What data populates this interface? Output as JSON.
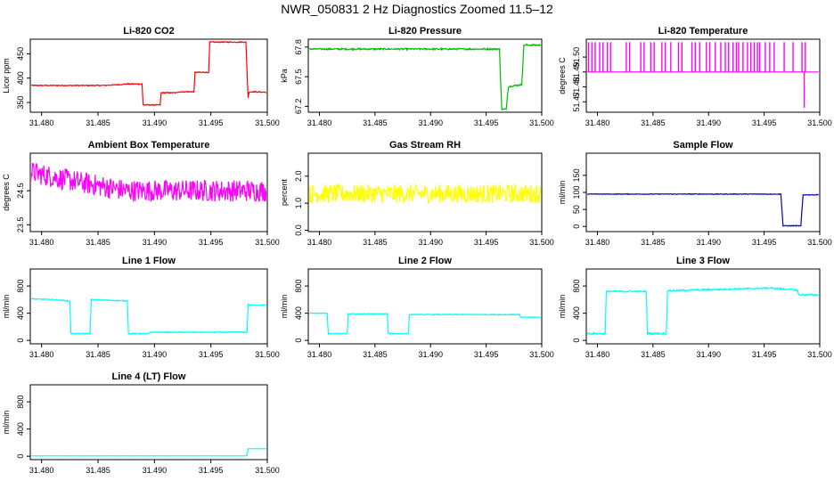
{
  "page_title": "NWR_050831  2 Hz Diagnostics Zoomed 11.5–12",
  "chart_data": [
    {
      "type": "line",
      "title": "Li‑820 CO2",
      "ylabel": "Licor ppm",
      "color": "#ff0000",
      "xlim": [
        31.479,
        31.5
      ],
      "ylim": [
        330,
        480
      ],
      "x_ticks": [
        31.48,
        31.485,
        31.49,
        31.495,
        31.5
      ],
      "x_tick_labels": [
        "31.480",
        "31.485",
        "31.490",
        "31.495",
        "31.500"
      ],
      "y_ticks": [
        350,
        400,
        450
      ],
      "y_tick_labels": [
        "350",
        "400",
        "450"
      ],
      "noise": 1,
      "series": [
        {
          "x": [
            31.479,
            31.4855,
            31.487,
            31.4875,
            31.4889,
            31.489,
            31.4905,
            31.4906,
            31.492,
            31.4921,
            31.4935,
            31.4936,
            31.4948,
            31.4949,
            31.4981,
            31.4983,
            31.4984,
            31.4988,
            31.4999
          ],
          "y": [
            385,
            385,
            387,
            388,
            388,
            345,
            345,
            370,
            370,
            372,
            372,
            412,
            412,
            474,
            474,
            360,
            372,
            372,
            371
          ]
        }
      ]
    },
    {
      "type": "line",
      "title": "Li‑820 Pressure",
      "ylabel": "kPa",
      "color": "#00bb00",
      "xlim": [
        31.479,
        31.5
      ],
      "ylim": [
        67.14,
        67.88
      ],
      "x_ticks": [
        31.48,
        31.485,
        31.49,
        31.495,
        31.5
      ],
      "x_tick_labels": [
        "31.480",
        "31.485",
        "31.490",
        "31.495",
        "31.500"
      ],
      "y_ticks": [
        67.2,
        67.5,
        67.8
      ],
      "y_tick_labels": [
        "67.2",
        "67.5",
        "67.8"
      ],
      "noise": 0.008,
      "series": [
        {
          "x": [
            31.479,
            31.4962,
            31.4964,
            31.4968,
            31.497,
            31.4982,
            31.4984,
            31.4986,
            31.4999
          ],
          "y": [
            67.78,
            67.78,
            67.17,
            67.17,
            67.4,
            67.42,
            67.82,
            67.82,
            67.82
          ]
        }
      ]
    },
    {
      "type": "line",
      "title": "Li‑820 Temperature",
      "ylabel": "degrees C",
      "color": "#ff00ff",
      "xlim": [
        31.479,
        31.5
      ],
      "ylim": [
        51.463,
        51.512
      ],
      "x_ticks": [
        31.48,
        31.485,
        31.49,
        31.495,
        31.5
      ],
      "x_tick_labels": [
        "31.480",
        "31.485",
        "31.490",
        "31.495",
        "31.500"
      ],
      "y_ticks": [
        51.47,
        51.48,
        51.49,
        51.5
      ],
      "y_tick_labels": [
        "51.47",
        "51.48",
        "51.49",
        "51.50"
      ],
      "baseline": 51.49,
      "spike_top": 51.51,
      "spike_x": [
        31.4792,
        31.4795,
        31.4798,
        31.4802,
        31.4805,
        31.4809,
        31.4812,
        31.4826,
        31.4829,
        31.4839,
        31.4842,
        31.4848,
        31.4851,
        31.4858,
        31.4861,
        31.4866,
        31.4873,
        31.4876,
        31.4885,
        31.4888,
        31.4892,
        31.4898,
        31.4901,
        31.4906,
        31.4911,
        31.4915,
        31.4918,
        31.4922,
        31.4925,
        31.4927,
        31.4931,
        31.4935,
        31.4938,
        31.4941,
        31.4944,
        31.4946,
        31.4951,
        31.4955,
        31.4959,
        31.4968,
        31.4976,
        31.4984,
        31.4987
      ],
      "dip_x": 31.4986,
      "dip_y": 51.466,
      "series": []
    },
    {
      "type": "line",
      "title": "Ambient Box Temperature",
      "ylabel": "degrees C",
      "color": "#ff00ff",
      "xlim": [
        31.479,
        31.5
      ],
      "ylim": [
        23.3,
        25.6
      ],
      "x_ticks": [
        31.48,
        31.485,
        31.49,
        31.495,
        31.5
      ],
      "x_tick_labels": [
        "31.480",
        "31.485",
        "31.490",
        "31.495",
        "31.500"
      ],
      "y_ticks": [
        23.5,
        24.5
      ],
      "y_tick_labels": [
        "23.5",
        "24.5"
      ],
      "noise": 0.32,
      "series": [
        {
          "x": [
            31.479,
            31.4825,
            31.4875,
            31.4999
          ],
          "y": [
            25.05,
            24.8,
            24.5,
            24.5
          ]
        }
      ]
    },
    {
      "type": "line",
      "title": "Gas Stream RH",
      "ylabel": "percent",
      "color": "#ffff00",
      "xlim": [
        31.479,
        31.5
      ],
      "ylim": [
        -0.05,
        2.85
      ],
      "x_ticks": [
        31.48,
        31.485,
        31.49,
        31.495,
        31.5
      ],
      "x_tick_labels": [
        "31.480",
        "31.485",
        "31.490",
        "31.495",
        "31.500"
      ],
      "y_ticks": [
        0.0,
        1.0,
        2.0
      ],
      "y_tick_labels": [
        "0.0",
        "1.0",
        "2.0"
      ],
      "noise": 0.35,
      "series": [
        {
          "x": [
            31.479,
            31.4999
          ],
          "y": [
            1.35,
            1.35
          ]
        }
      ]
    },
    {
      "type": "line",
      "title": "Sample Flow",
      "ylabel": "ml/min",
      "color": "#0000bb",
      "xlim": [
        31.479,
        31.5
      ],
      "ylim": [
        -15,
        215
      ],
      "x_ticks": [
        31.48,
        31.485,
        31.49,
        31.495,
        31.5
      ],
      "x_tick_labels": [
        "31.480",
        "31.485",
        "31.490",
        "31.495",
        "31.500"
      ],
      "y_ticks": [
        0,
        50,
        100,
        150
      ],
      "y_tick_labels": [
        "0",
        "50",
        "100",
        "150"
      ],
      "noise": 1,
      "series": [
        {
          "x": [
            31.479,
            31.4965,
            31.4967,
            31.4983,
            31.4985,
            31.4999
          ],
          "y": [
            95,
            95,
            2,
            2,
            93,
            93
          ]
        }
      ]
    },
    {
      "type": "line",
      "title": "Line 1 Flow",
      "ylabel": "ml/min",
      "color": "#00ffff",
      "xlim": [
        31.479,
        31.5
      ],
      "ylim": [
        -50,
        1050
      ],
      "x_ticks": [
        31.48,
        31.485,
        31.49,
        31.495,
        31.5
      ],
      "x_tick_labels": [
        "31.480",
        "31.485",
        "31.490",
        "31.495",
        "31.500"
      ],
      "y_ticks": [
        0,
        400,
        800
      ],
      "y_tick_labels": [
        "0",
        "400",
        "800"
      ],
      "noise": 7,
      "series": [
        {
          "x": [
            31.479,
            31.481,
            31.4825,
            31.4826,
            31.4843,
            31.4844,
            31.4876,
            31.4877,
            31.4895,
            31.4896,
            31.4982,
            31.4983,
            31.4999
          ],
          "y": [
            610,
            600,
            580,
            100,
            100,
            600,
            580,
            100,
            100,
            120,
            120,
            520,
            520
          ]
        }
      ]
    },
    {
      "type": "line",
      "title": "Line 2 Flow",
      "ylabel": "ml/min",
      "color": "#00ffff",
      "xlim": [
        31.479,
        31.5
      ],
      "ylim": [
        -50,
        1050
      ],
      "x_ticks": [
        31.48,
        31.485,
        31.49,
        31.495,
        31.5
      ],
      "x_tick_labels": [
        "31.480",
        "31.485",
        "31.490",
        "31.495",
        "31.500"
      ],
      "y_ticks": [
        0,
        400,
        800
      ],
      "y_tick_labels": [
        "0",
        "400",
        "800"
      ],
      "noise": 6,
      "series": [
        {
          "x": [
            31.479,
            31.4807,
            31.4808,
            31.4825,
            31.4826,
            31.4861,
            31.4862,
            31.488,
            31.4881,
            31.498,
            31.4981,
            31.4999
          ],
          "y": [
            400,
            400,
            100,
            100,
            390,
            390,
            100,
            100,
            380,
            380,
            340,
            340
          ]
        }
      ]
    },
    {
      "type": "line",
      "title": "Line 3 Flow",
      "ylabel": "ml/min",
      "color": "#00ffff",
      "xlim": [
        31.479,
        31.5
      ],
      "ylim": [
        -50,
        1050
      ],
      "x_ticks": [
        31.48,
        31.485,
        31.49,
        31.495,
        31.5
      ],
      "x_tick_labels": [
        "31.480",
        "31.485",
        "31.490",
        "31.495",
        "31.500"
      ],
      "y_ticks": [
        0,
        400,
        800
      ],
      "y_tick_labels": [
        "0",
        "400",
        "800"
      ],
      "noise": 12,
      "series": [
        {
          "x": [
            31.479,
            31.4807,
            31.4808,
            31.4844,
            31.4845,
            31.4862,
            31.4863,
            31.4955,
            31.498,
            31.4981,
            31.4999
          ],
          "y": [
            100,
            100,
            720,
            720,
            100,
            100,
            730,
            770,
            740,
            670,
            670
          ]
        }
      ]
    },
    {
      "type": "line",
      "title": "Line 4 (LT) Flow",
      "ylabel": "ml/min",
      "color": "#00ffff",
      "xlim": [
        31.479,
        31.5
      ],
      "ylim": [
        -50,
        1050
      ],
      "x_ticks": [
        31.48,
        31.485,
        31.49,
        31.495,
        31.5
      ],
      "x_tick_labels": [
        "31.480",
        "31.485",
        "31.490",
        "31.495",
        "31.500"
      ],
      "y_ticks": [
        0,
        400,
        800
      ],
      "y_tick_labels": [
        "0",
        "400",
        "800"
      ],
      "noise": 1,
      "series": [
        {
          "x": [
            31.479,
            31.4982,
            31.4983,
            31.4999
          ],
          "y": [
            5,
            5,
            110,
            110
          ]
        }
      ]
    }
  ]
}
